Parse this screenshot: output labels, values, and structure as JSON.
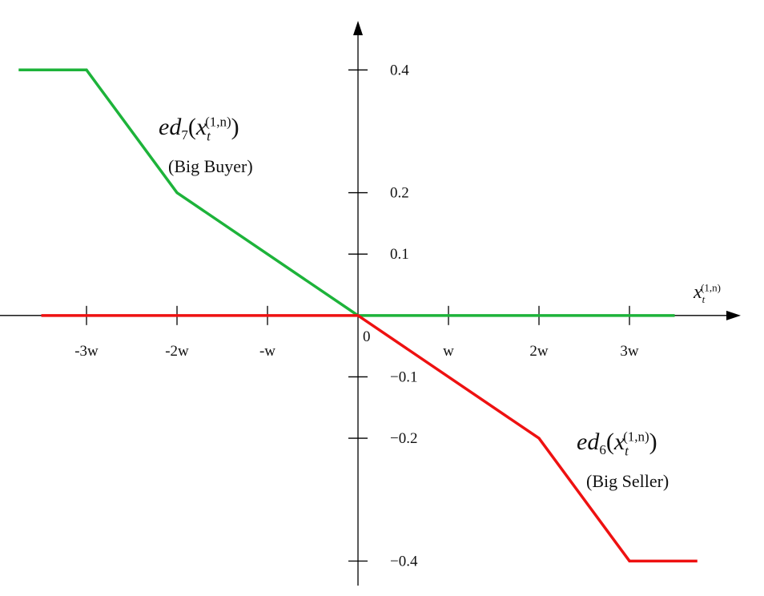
{
  "chart_data": {
    "type": "line",
    "x_label": {
      "var": "x",
      "sub": "t",
      "sup": "(1,n)"
    },
    "xlim": [
      -3.956,
      4.23
    ],
    "ylim": [
      -0.44,
      0.48
    ],
    "xticks": [
      {
        "value": -3,
        "label": "-3w"
      },
      {
        "value": -2,
        "label": "-2w"
      },
      {
        "value": -1,
        "label": "-w"
      },
      {
        "value": 1,
        "label": "w"
      },
      {
        "value": 2,
        "label": "2w"
      },
      {
        "value": 3,
        "label": "3w"
      }
    ],
    "origin_label": "0",
    "yticks": [
      0.4,
      0.2,
      0.1,
      {
        "value": -0.1,
        "label": "−0.1"
      },
      {
        "value": -0.2,
        "label": "−0.2"
      },
      {
        "value": -0.4,
        "label": "−0.4"
      }
    ],
    "series": [
      {
        "label": {
          "func": "ed",
          "index": "7",
          "var": "x",
          "sub": "t",
          "sup": "(1,n)"
        },
        "note": "(Big Buyer)",
        "color": "#1db33a",
        "x": [
          -3.75,
          -3,
          -2,
          0,
          3.5
        ],
        "values": [
          0.4,
          0.4,
          0.2,
          0,
          0
        ]
      },
      {
        "label": {
          "func": "ed",
          "index": "6",
          "var": "x",
          "sub": "t",
          "sup": "(1,n)"
        },
        "note": "(Big Seller)",
        "color": "#ee1111",
        "x": [
          -3.5,
          0,
          2,
          3,
          3.75
        ],
        "values": [
          0,
          0,
          -0.2,
          -0.4,
          -0.4
        ]
      }
    ]
  }
}
